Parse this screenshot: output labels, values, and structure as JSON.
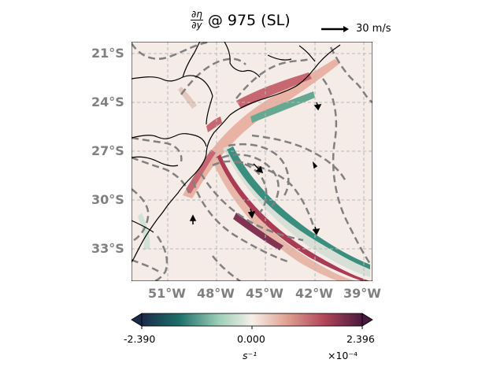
{
  "title": {
    "num": "∂η",
    "den": "∂y",
    "rest": "@ 975 (SL)"
  },
  "reference_vector": {
    "label": "30 m/s"
  },
  "map": {
    "lat_labels": [
      "21°S",
      "24°S",
      "27°S",
      "30°S",
      "33°S"
    ],
    "lon_labels": [
      "51°W",
      "48°W",
      "45°W",
      "42°W",
      "39°W"
    ]
  },
  "colorbar": {
    "min_label": "-2.390",
    "mid_label": "0.000",
    "max_label": "2.396",
    "unit": "s⁻¹",
    "scale": "×10⁻⁴",
    "colors": [
      "#1b2a4a",
      "#1d6f6a",
      "#9dcfb8",
      "#f5efe9",
      "#e2a594",
      "#b0455a",
      "#4a1a3e"
    ]
  }
}
